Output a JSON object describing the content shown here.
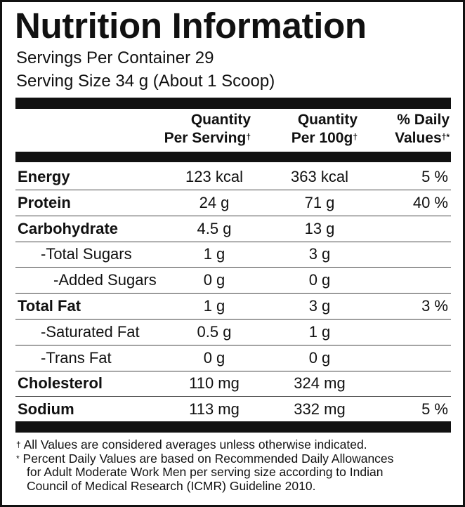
{
  "header": {
    "title": "Nutrition Information",
    "servings": "Servings Per Container 29",
    "serving_size": "Serving Size 34 g (About 1 Scoop)"
  },
  "table": {
    "columns": [
      {
        "line1": "Quantity",
        "line2": "Per Serving",
        "mark": "†"
      },
      {
        "line1": "Quantity",
        "line2": "Per 100g",
        "mark": "†"
      },
      {
        "line1": "% Daily",
        "line2": "Values",
        "mark": "†*"
      }
    ],
    "rows": [
      {
        "name": "Energy",
        "serving": "123 kcal",
        "per100": "363 kcal",
        "dv": "5 %"
      },
      {
        "name": "Protein",
        "serving": "24 g",
        "per100": "71 g",
        "dv": "40 %"
      },
      {
        "name": "Carbohydrate",
        "serving": "4.5 g",
        "per100": "13 g",
        "dv": null
      },
      {
        "name": "-Total Sugars",
        "serving": "1 g",
        "per100": "3 g",
        "dv": null
      },
      {
        "name": "-Added Sugars",
        "serving": "0 g",
        "per100": "0 g",
        "dv": null
      },
      {
        "name": "Total Fat",
        "serving": "1 g",
        "per100": "3 g",
        "dv": "3 %"
      },
      {
        "name": "-Saturated Fat",
        "serving": "0.5 g",
        "per100": "1 g",
        "dv": null
      },
      {
        "name": "-Trans Fat",
        "serving": "0 g",
        "per100": "0 g",
        "dv": null
      },
      {
        "name": "Cholesterol",
        "serving": "110 mg",
        "per100": "324 mg",
        "dv": null
      },
      {
        "name": "Sodium",
        "serving": "113 mg",
        "per100": "332 mg",
        "dv": "5 %"
      }
    ]
  },
  "footnotes": [
    {
      "symbol": "†",
      "lines": [
        "All Values are considered averages unless otherwise indicated."
      ]
    },
    {
      "symbol": "*",
      "lines": [
        "Percent Daily Values are based on Recommended Daily Allowances",
        "for Adult Moderate Work Men per serving size according to Indian",
        "Council of Medical Research (ICMR) Guideline 2010."
      ]
    }
  ]
}
